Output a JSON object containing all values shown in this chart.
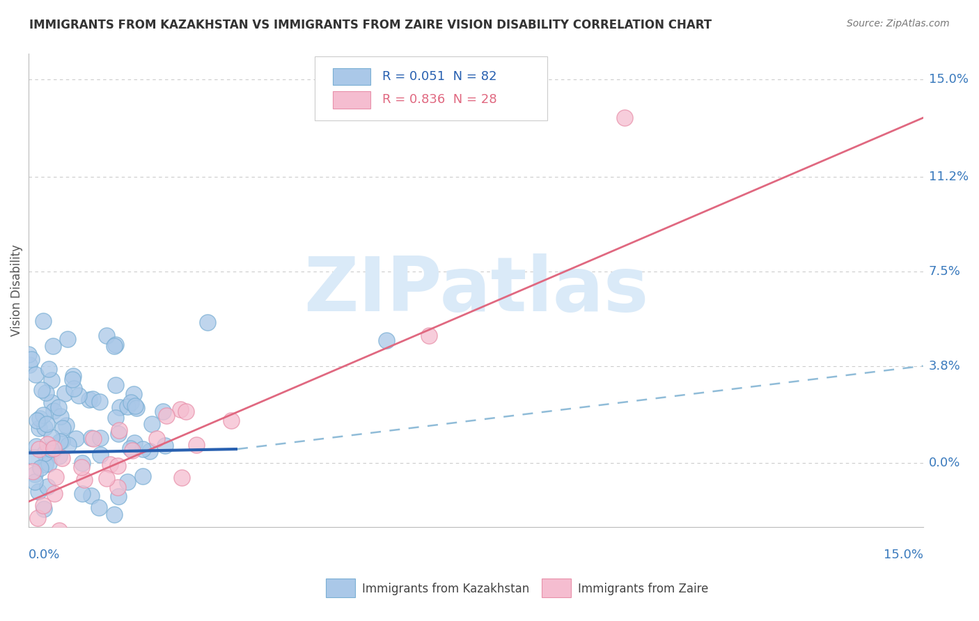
{
  "title": "IMMIGRANTS FROM KAZAKHSTAN VS IMMIGRANTS FROM ZAIRE VISION DISABILITY CORRELATION CHART",
  "source": "Source: ZipAtlas.com",
  "ylabel": "Vision Disability",
  "ytick_labels": [
    "0.0%",
    "3.8%",
    "7.5%",
    "11.2%",
    "15.0%"
  ],
  "ytick_values": [
    0.0,
    3.8,
    7.5,
    11.2,
    15.0
  ],
  "xmin": 0.0,
  "xmax": 15.0,
  "ymin": -2.5,
  "ymax": 16.0,
  "kazakhstan_R": 0.051,
  "kazakhstan_N": 82,
  "zaire_R": 0.836,
  "zaire_N": 28,
  "kazakhstan_color": "#aac8e8",
  "zaire_color": "#f5bdd0",
  "kazakhstan_edge": "#7aafd4",
  "zaire_edge": "#e890aa",
  "trend_kazakhstan_color": "#2860b0",
  "trend_zaire_color": "#e06880",
  "trend_dashed_color": "#90bcd8",
  "watermark": "ZIPatlas",
  "watermark_color": "#daeaf8",
  "background_color": "#ffffff",
  "grid_color": "#cccccc",
  "legend_color_kaz": "#2860b0",
  "legend_color_zaire": "#e06880",
  "title_color": "#333333",
  "source_color": "#777777",
  "axis_label_color": "#555555",
  "tick_label_color": "#3a7abd",
  "zaire_line_x0": 0.0,
  "zaire_line_y0": -1.5,
  "zaire_line_x1": 15.0,
  "zaire_line_y1": 13.5,
  "kaz_line_x0": 0.0,
  "kaz_line_y0": 0.4,
  "kaz_line_x1_solid": 3.5,
  "kaz_line_y1_solid": 0.55,
  "kaz_line_x1_dash": 15.0,
  "kaz_line_y1_dash": 3.8
}
